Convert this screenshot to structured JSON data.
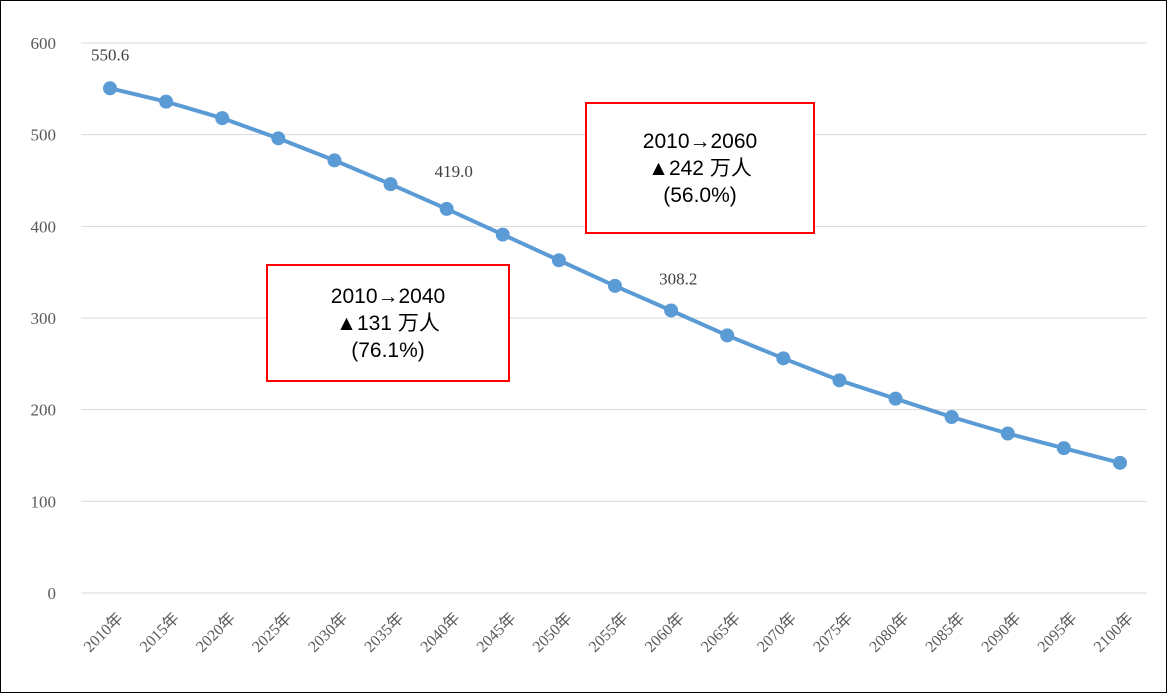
{
  "chart_data": {
    "type": "line",
    "title": "",
    "xlabel": "",
    "ylabel": "",
    "ylim": [
      0,
      600
    ],
    "yticks": [
      "0",
      "100",
      "200",
      "300",
      "400",
      "500",
      "600"
    ],
    "grid": true,
    "legend": "none",
    "categories": [
      "2010年",
      "2015年",
      "2020年",
      "2025年",
      "2030年",
      "2035年",
      "2040年",
      "2045年",
      "2050年",
      "2055年",
      "2060年",
      "2065年",
      "2070年",
      "2075年",
      "2080年",
      "2085年",
      "2090年",
      "2095年",
      "2100年"
    ],
    "series": [
      {
        "color": "#5b9bd5",
        "values": [
          550.6,
          536,
          518,
          496,
          472,
          446,
          419.0,
          391,
          363,
          335,
          308.2,
          281,
          256,
          232,
          212,
          192,
          174,
          158,
          142
        ]
      }
    ],
    "data_labels": [
      {
        "index": 0,
        "text": "550.6"
      },
      {
        "index": 6,
        "text": "419.0"
      },
      {
        "index": 10,
        "text": "308.2"
      }
    ],
    "annotations": [
      {
        "lines": [
          "2010→2040",
          "▲131 万人",
          "(76.1%)"
        ],
        "border_color": "#ff0000"
      },
      {
        "lines": [
          "2010→2060",
          "▲242 万人",
          "(56.0%)"
        ],
        "border_color": "#ff0000"
      }
    ]
  }
}
